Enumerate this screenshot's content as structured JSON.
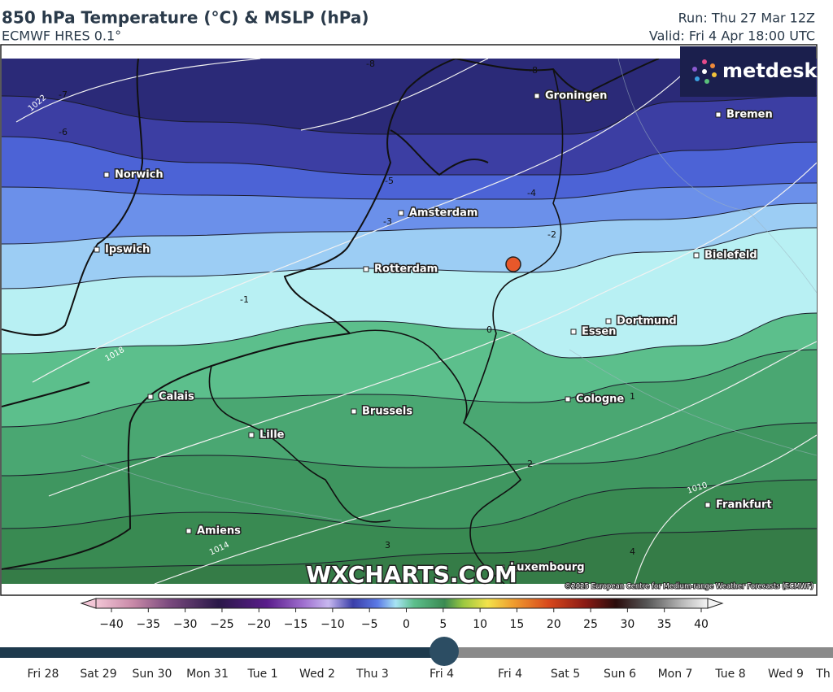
{
  "header": {
    "title": "850 hPa Temperature (°C) & MSLP (hPa)",
    "subtitle": "ECMWF HRES 0.1°",
    "run": "Run: Thu 27 Mar 12Z",
    "valid": "Valid: Fri 4 Apr 18:00 UTC"
  },
  "logo": "metdesk",
  "map": {
    "cities": [
      "Groningen",
      "Bremen",
      "Norwich",
      "Amsterdam",
      "Ipswich",
      "Rotterdam",
      "Bielefeld",
      "Dortmund",
      "Essen",
      "Calais",
      "Brussels",
      "Cologne",
      "Lille",
      "Frankfurt",
      "Amiens",
      "Luxembourg"
    ],
    "temperature_labels": [
      "-8",
      "-8",
      "-7",
      "-6",
      "-5",
      "-4",
      "-3",
      "-2",
      "-1",
      "0",
      "1",
      "2",
      "3",
      "4"
    ],
    "isobar_labels": [
      "1022",
      "1018",
      "1014",
      "1010"
    ],
    "watermark": "WXCHARTS.COM",
    "copyright": "©2025 European Centre for Medium-range Weather Forecasts (ECMWF)"
  },
  "colorbar": {
    "ticks": [
      "−40",
      "−35",
      "−30",
      "−25",
      "−20",
      "−15",
      "−10",
      "−5",
      "0",
      "5",
      "10",
      "15",
      "20",
      "25",
      "30",
      "35",
      "40"
    ]
  },
  "timeline": {
    "days": [
      "Fri 28",
      "Sat 29",
      "Sun 30",
      "Mon 31",
      "Tue 1",
      "Wed 2",
      "Thu 3",
      "Fri 4",
      "Fri 4",
      "Sat 5",
      "Sun 6",
      "Mon 7",
      "Tue 8",
      "Wed 9",
      "Th"
    ]
  }
}
